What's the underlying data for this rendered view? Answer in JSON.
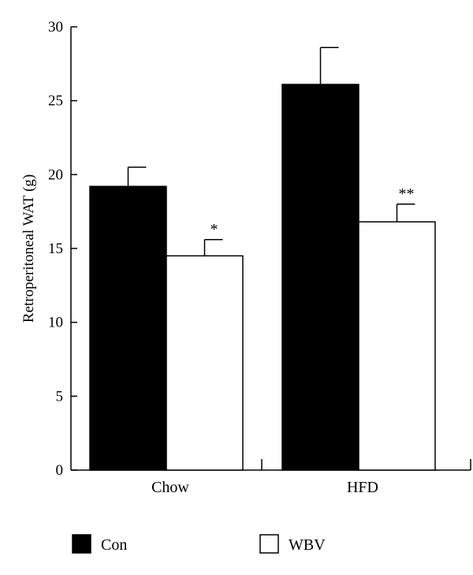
{
  "chart_data": {
    "type": "bar",
    "title": "",
    "xlabel": "",
    "ylabel": "Retroperitoneal WAT (g)",
    "ylim": [
      0,
      30
    ],
    "yticks": [
      0,
      5,
      10,
      15,
      20,
      25,
      30
    ],
    "categories": [
      "Chow",
      "HFD"
    ],
    "series": [
      {
        "name": "Con",
        "color": "#000000",
        "values": [
          19.2,
          26.1
        ],
        "errors": [
          1.3,
          2.5
        ]
      },
      {
        "name": "WBV",
        "color": "#ffffff",
        "values": [
          14.5,
          16.8
        ],
        "errors": [
          1.1,
          1.2
        ]
      }
    ],
    "annotations": [
      {
        "category": "Chow",
        "series": "WBV",
        "text": "*"
      },
      {
        "category": "HFD",
        "series": "WBV",
        "text": "**"
      }
    ],
    "legend": "bottom",
    "grid": false
  }
}
